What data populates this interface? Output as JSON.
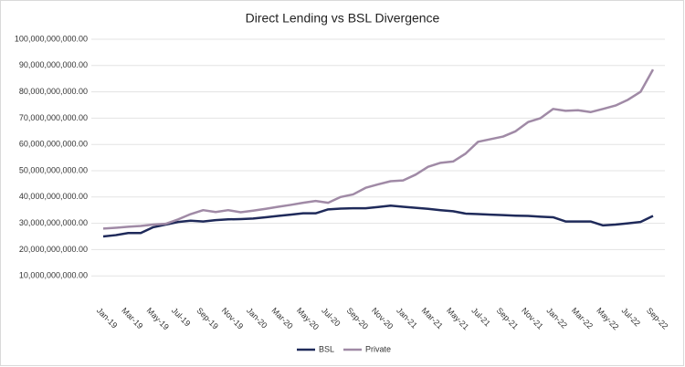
{
  "chart_data": {
    "type": "line",
    "title": "Direct Lending vs BSL Divergence",
    "categories": [
      "Jan-19",
      null,
      "Mar-19",
      null,
      "May-19",
      null,
      "Jul-19",
      null,
      "Sep-19",
      null,
      "Nov-19",
      null,
      "Jan-20",
      null,
      "Mar-20",
      null,
      "May-20",
      null,
      "Jul-20",
      null,
      "Sep-20",
      null,
      "Nov-20",
      null,
      "Jan-21",
      null,
      "Mar-21",
      null,
      "May-21",
      null,
      "Jul-21",
      null,
      "Sep-21",
      null,
      "Nov-21",
      null,
      "Jan-22",
      null,
      "Mar-22",
      null,
      "May-22",
      null,
      "Jul-22",
      null,
      "Sep-22"
    ],
    "series": [
      {
        "name": "BSL",
        "color": "#1f2a5a",
        "values": [
          25000000000,
          25500000000,
          26300000000,
          26300000000,
          28500000000,
          29500000000,
          30500000000,
          31000000000,
          30700000000,
          31200000000,
          31500000000,
          31600000000,
          31800000000,
          32300000000,
          32800000000,
          33300000000,
          33800000000,
          33800000000,
          35300000000,
          35600000000,
          35700000000,
          35700000000,
          36200000000,
          36700000000,
          36300000000,
          35900000000,
          35500000000,
          35000000000,
          34600000000,
          33700000000,
          33500000000,
          33300000000,
          33100000000,
          32900000000,
          32800000000,
          32500000000,
          32300000000,
          30700000000,
          30700000000,
          30700000000,
          29200000000,
          29500000000,
          30000000000,
          30500000000,
          32800000000
        ]
      },
      {
        "name": "Private",
        "color": "#a08aa6",
        "values": [
          28000000000,
          28300000000,
          28700000000,
          29000000000,
          29500000000,
          29800000000,
          31500000000,
          33500000000,
          35000000000,
          34300000000,
          35000000000,
          34200000000,
          34800000000,
          35500000000,
          36300000000,
          37000000000,
          37800000000,
          38500000000,
          37800000000,
          40000000000,
          41000000000,
          43500000000,
          44800000000,
          46000000000,
          46300000000,
          48500000000,
          51500000000,
          53000000000,
          53500000000,
          56500000000,
          61000000000,
          62000000000,
          63000000000,
          65000000000,
          68500000000,
          70000000000,
          73500000000,
          72800000000,
          73000000000,
          72300000000,
          73500000000,
          74800000000,
          77000000000,
          80000000000,
          88500000000
        ]
      }
    ],
    "ylim": [
      0,
      100000000000
    ],
    "yticks": [
      {
        "value": 10000000000,
        "label": "10,000,000,000.00"
      },
      {
        "value": 20000000000,
        "label": "20,000,000,000.00"
      },
      {
        "value": 30000000000,
        "label": "30,000,000,000.00"
      },
      {
        "value": 40000000000,
        "label": "40,000,000,000.00"
      },
      {
        "value": 50000000000,
        "label": "50,000,000,000.00"
      },
      {
        "value": 60000000000,
        "label": "60,000,000,000.00"
      },
      {
        "value": 70000000000,
        "label": "70,000,000,000.00"
      },
      {
        "value": 80000000000,
        "label": "80,000,000,000.00"
      },
      {
        "value": 90000000000,
        "label": "90,000,000,000.00"
      },
      {
        "value": 100000000000,
        "label": "100,000,000,000.00"
      }
    ],
    "grid": true,
    "legend": "bottom"
  }
}
